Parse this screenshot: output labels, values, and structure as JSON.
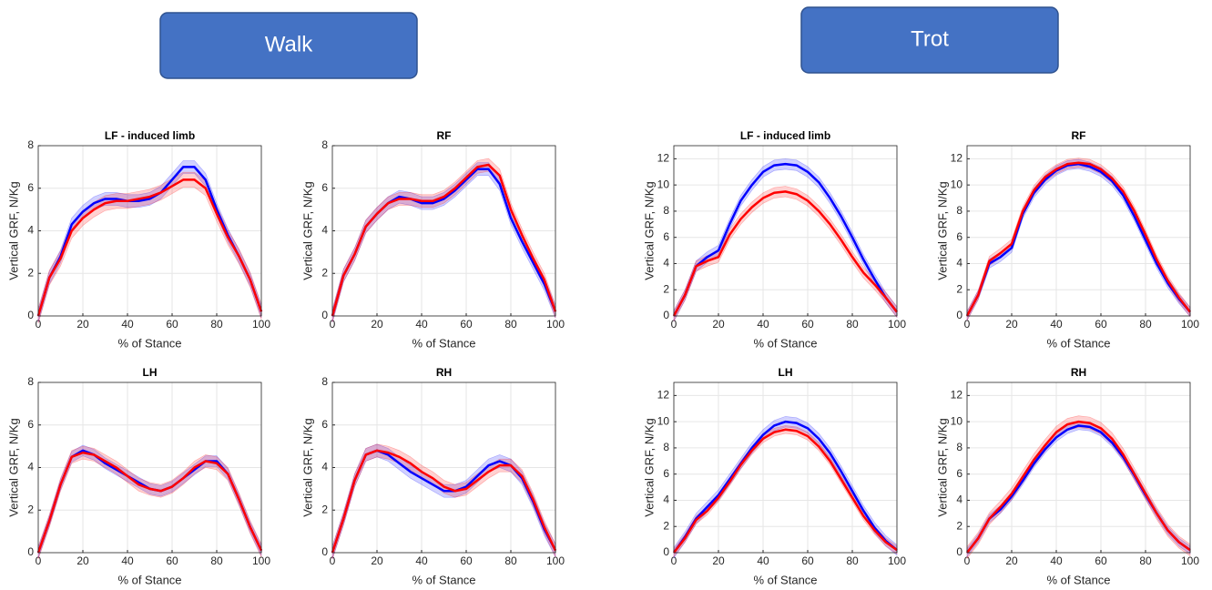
{
  "headers": {
    "walk": "Walk",
    "trot": "Trot"
  },
  "chart_data": [
    {
      "type": "line",
      "title": "LF - induced limb",
      "xlabel": "% of Stance",
      "ylabel": "Vertical GRF, N/Kg",
      "x": [
        0,
        5,
        10,
        15,
        20,
        25,
        30,
        35,
        40,
        45,
        50,
        55,
        60,
        65,
        70,
        75,
        80,
        85,
        90,
        95,
        100
      ],
      "xlim": [
        0,
        100
      ],
      "xticks": [
        0,
        20,
        40,
        60,
        80,
        100
      ],
      "ylim": [
        0,
        8
      ],
      "yticks": [
        0,
        2,
        4,
        6,
        8
      ],
      "grid": true,
      "series": [
        {
          "color": "#0000ff",
          "sd": 0.3,
          "values": [
            0,
            1.8,
            2.8,
            4.3,
            4.9,
            5.3,
            5.5,
            5.5,
            5.4,
            5.4,
            5.5,
            5.8,
            6.4,
            7.0,
            7.0,
            6.4,
            5.0,
            3.8,
            2.8,
            1.7,
            0.2
          ]
        },
        {
          "color": "#ff0000",
          "sd": 0.35,
          "values": [
            0,
            1.8,
            2.7,
            4.0,
            4.6,
            5.0,
            5.3,
            5.4,
            5.4,
            5.5,
            5.6,
            5.8,
            6.1,
            6.4,
            6.4,
            6.0,
            4.8,
            3.7,
            2.8,
            1.7,
            0.2
          ]
        }
      ]
    },
    {
      "type": "line",
      "title": "RF",
      "xlabel": "% of Stance",
      "ylabel": "Vertical GRF, N/Kg",
      "x": [
        0,
        5,
        10,
        15,
        20,
        25,
        30,
        35,
        40,
        45,
        50,
        55,
        60,
        65,
        70,
        75,
        80,
        85,
        90,
        95,
        100
      ],
      "xlim": [
        0,
        100
      ],
      "xticks": [
        0,
        20,
        40,
        60,
        80,
        100
      ],
      "ylim": [
        0,
        8
      ],
      "yticks": [
        0,
        2,
        4,
        6,
        8
      ],
      "grid": true,
      "series": [
        {
          "color": "#0000ff",
          "sd": 0.3,
          "values": [
            0,
            1.9,
            2.9,
            4.2,
            4.8,
            5.3,
            5.6,
            5.5,
            5.3,
            5.3,
            5.5,
            5.9,
            6.4,
            6.9,
            6.9,
            6.2,
            4.6,
            3.5,
            2.5,
            1.5,
            0.2
          ]
        },
        {
          "color": "#ff0000",
          "sd": 0.3,
          "values": [
            0,
            1.9,
            2.9,
            4.2,
            4.8,
            5.3,
            5.5,
            5.5,
            5.4,
            5.4,
            5.6,
            6.0,
            6.5,
            7.0,
            7.1,
            6.6,
            5.0,
            3.8,
            2.7,
            1.7,
            0.2
          ]
        }
      ]
    },
    {
      "type": "line",
      "title": "LF - induced limb",
      "xlabel": "% of Stance",
      "ylabel": "Vertical GRF, N/Kg",
      "x": [
        0,
        5,
        10,
        15,
        20,
        25,
        30,
        35,
        40,
        45,
        50,
        55,
        60,
        65,
        70,
        75,
        80,
        85,
        90,
        95,
        100
      ],
      "xlim": [
        0,
        100
      ],
      "xticks": [
        0,
        20,
        40,
        60,
        80,
        100
      ],
      "ylim": [
        0,
        13
      ],
      "yticks": [
        0,
        2,
        4,
        6,
        8,
        10,
        12
      ],
      "grid": true,
      "series": [
        {
          "color": "#0000ff",
          "sd": 0.4,
          "values": [
            0,
            1.6,
            3.8,
            4.5,
            5.0,
            7.0,
            8.8,
            10.0,
            11.0,
            11.5,
            11.6,
            11.5,
            11.0,
            10.2,
            9.0,
            7.6,
            6.0,
            4.3,
            2.8,
            1.4,
            0.3
          ]
        },
        {
          "color": "#ff0000",
          "sd": 0.4,
          "values": [
            0,
            1.6,
            3.8,
            4.2,
            4.5,
            6.2,
            7.4,
            8.3,
            9.0,
            9.4,
            9.5,
            9.3,
            8.8,
            8.0,
            7.0,
            5.8,
            4.5,
            3.3,
            2.4,
            1.4,
            0.3
          ]
        }
      ]
    },
    {
      "type": "line",
      "title": "RF",
      "xlabel": "% of Stance",
      "ylabel": "Vertical GRF, N/Kg",
      "x": [
        0,
        5,
        10,
        15,
        20,
        25,
        30,
        35,
        40,
        45,
        50,
        55,
        60,
        65,
        70,
        75,
        80,
        85,
        90,
        95,
        100
      ],
      "xlim": [
        0,
        100
      ],
      "xticks": [
        0,
        20,
        40,
        60,
        80,
        100
      ],
      "ylim": [
        0,
        13
      ],
      "yticks": [
        0,
        2,
        4,
        6,
        8,
        10,
        12
      ],
      "grid": true,
      "series": [
        {
          "color": "#0000ff",
          "sd": 0.35,
          "values": [
            0,
            1.6,
            4.0,
            4.5,
            5.2,
            7.8,
            9.4,
            10.4,
            11.1,
            11.5,
            11.6,
            11.4,
            11.0,
            10.3,
            9.2,
            7.6,
            5.8,
            4.0,
            2.5,
            1.3,
            0.3
          ]
        },
        {
          "color": "#ff0000",
          "sd": 0.35,
          "values": [
            0,
            1.6,
            4.2,
            4.8,
            5.5,
            8.0,
            9.6,
            10.6,
            11.2,
            11.6,
            11.7,
            11.6,
            11.2,
            10.5,
            9.5,
            8.0,
            6.2,
            4.3,
            2.7,
            1.4,
            0.3
          ]
        }
      ]
    },
    {
      "type": "line",
      "title": "LH",
      "xlabel": "% of Stance",
      "ylabel": "Vertical GRF, N/Kg",
      "x": [
        0,
        5,
        10,
        15,
        20,
        25,
        30,
        35,
        40,
        45,
        50,
        55,
        60,
        65,
        70,
        75,
        80,
        85,
        90,
        95,
        100
      ],
      "xlim": [
        0,
        100
      ],
      "xticks": [
        0,
        20,
        40,
        60,
        80,
        100
      ],
      "ylim": [
        0,
        8
      ],
      "yticks": [
        0,
        2,
        4,
        6,
        8
      ],
      "grid": true,
      "series": [
        {
          "color": "#0000ff",
          "sd": 0.25,
          "values": [
            0,
            1.5,
            3.2,
            4.5,
            4.8,
            4.6,
            4.2,
            3.9,
            3.6,
            3.3,
            3.0,
            2.9,
            3.1,
            3.5,
            3.9,
            4.3,
            4.3,
            3.7,
            2.5,
            1.2,
            0.1
          ]
        },
        {
          "color": "#ff0000",
          "sd": 0.3,
          "values": [
            0,
            1.5,
            3.2,
            4.5,
            4.7,
            4.6,
            4.3,
            4.0,
            3.6,
            3.2,
            3.0,
            2.9,
            3.1,
            3.5,
            4.0,
            4.3,
            4.2,
            3.7,
            2.5,
            1.2,
            0.1
          ]
        }
      ]
    },
    {
      "type": "line",
      "title": "RH",
      "xlabel": "% of Stance",
      "ylabel": "Vertical GRF, N/Kg",
      "x": [
        0,
        5,
        10,
        15,
        20,
        25,
        30,
        35,
        40,
        45,
        50,
        55,
        60,
        65,
        70,
        75,
        80,
        85,
        90,
        95,
        100
      ],
      "xlim": [
        0,
        100
      ],
      "xticks": [
        0,
        20,
        40,
        60,
        80,
        100
      ],
      "ylim": [
        0,
        8
      ],
      "yticks": [
        0,
        2,
        4,
        6,
        8
      ],
      "grid": true,
      "series": [
        {
          "color": "#0000ff",
          "sd": 0.3,
          "values": [
            0,
            1.6,
            3.4,
            4.6,
            4.8,
            4.6,
            4.2,
            3.8,
            3.5,
            3.2,
            2.9,
            2.9,
            3.1,
            3.6,
            4.1,
            4.3,
            4.1,
            3.5,
            2.4,
            1.1,
            0.1
          ]
        },
        {
          "color": "#ff0000",
          "sd": 0.3,
          "values": [
            0,
            1.6,
            3.4,
            4.6,
            4.8,
            4.7,
            4.5,
            4.2,
            3.8,
            3.5,
            3.1,
            2.9,
            3.0,
            3.4,
            3.8,
            4.1,
            4.1,
            3.6,
            2.5,
            1.2,
            0.1
          ]
        }
      ]
    },
    {
      "type": "line",
      "title": "LH",
      "xlabel": "% of Stance",
      "ylabel": "Vertical GRF, N/Kg",
      "x": [
        0,
        5,
        10,
        15,
        20,
        25,
        30,
        35,
        40,
        45,
        50,
        55,
        60,
        65,
        70,
        75,
        80,
        85,
        90,
        95,
        100
      ],
      "xlim": [
        0,
        100
      ],
      "xticks": [
        0,
        20,
        40,
        60,
        80,
        100
      ],
      "ylim": [
        0,
        13
      ],
      "yticks": [
        0,
        2,
        4,
        6,
        8,
        10,
        12
      ],
      "grid": true,
      "series": [
        {
          "color": "#0000ff",
          "sd": 0.4,
          "values": [
            0,
            1.2,
            2.6,
            3.5,
            4.4,
            5.6,
            6.8,
            8.0,
            9.0,
            9.7,
            10.0,
            9.9,
            9.5,
            8.7,
            7.6,
            6.2,
            4.7,
            3.2,
            1.9,
            0.9,
            0.2
          ]
        },
        {
          "color": "#ff0000",
          "sd": 0.3,
          "values": [
            0,
            1.1,
            2.5,
            3.2,
            4.2,
            5.4,
            6.7,
            7.8,
            8.7,
            9.2,
            9.4,
            9.3,
            8.9,
            8.1,
            7.0,
            5.6,
            4.2,
            2.8,
            1.7,
            0.8,
            0.2
          ]
        }
      ]
    },
    {
      "type": "line",
      "title": "RH",
      "xlabel": "% of Stance",
      "ylabel": "Vertical GRF, N/Kg",
      "x": [
        0,
        5,
        10,
        15,
        20,
        25,
        30,
        35,
        40,
        45,
        50,
        55,
        60,
        65,
        70,
        75,
        80,
        85,
        90,
        95,
        100
      ],
      "xlim": [
        0,
        100
      ],
      "xticks": [
        0,
        20,
        40,
        60,
        80,
        100
      ],
      "ylim": [
        0,
        13
      ],
      "yticks": [
        0,
        2,
        4,
        6,
        8,
        10,
        12
      ],
      "grid": true,
      "series": [
        {
          "color": "#0000ff",
          "sd": 0.3,
          "values": [
            0,
            1.1,
            2.6,
            3.3,
            4.3,
            5.5,
            6.8,
            7.9,
            8.8,
            9.4,
            9.7,
            9.6,
            9.2,
            8.4,
            7.3,
            5.9,
            4.4,
            3.0,
            1.7,
            0.8,
            0.2
          ]
        },
        {
          "color": "#ff0000",
          "sd": 0.45,
          "values": [
            0,
            1.1,
            2.6,
            3.5,
            4.5,
            5.8,
            7.1,
            8.2,
            9.2,
            9.8,
            10.0,
            9.9,
            9.5,
            8.7,
            7.5,
            6.0,
            4.5,
            3.0,
            1.7,
            0.8,
            0.2
          ]
        }
      ]
    }
  ]
}
